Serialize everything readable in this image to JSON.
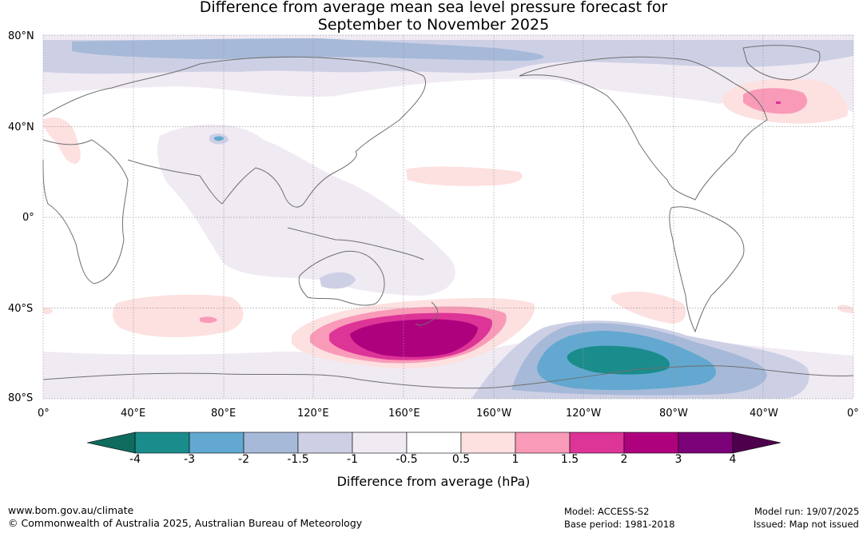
{
  "title": {
    "line1": "Difference from average mean sea level pressure forecast for",
    "line2": "September to November 2025"
  },
  "axes": {
    "lat_labels": [
      "80°N",
      "40°N",
      "0°",
      "40°S",
      "80°S"
    ],
    "lon_labels": [
      "0°",
      "40°E",
      "80°E",
      "120°E",
      "160°E",
      "160°W",
      "120°W",
      "80°W",
      "40°W",
      "0°"
    ]
  },
  "colorbar": {
    "ticks": [
      "-4",
      "-3",
      "-2",
      "-1.5",
      "-1",
      "-0.5",
      "0.5",
      "1",
      "1.5",
      "2",
      "3",
      "4"
    ],
    "colors": [
      "#1b8c8c",
      "#62a8d0",
      "#a6b9d8",
      "#cdd0e5",
      "#f0eaf3",
      "#ffffff",
      "#fde0e0",
      "#f99ab8",
      "#dd3497",
      "#ae017e",
      "#7a0177"
    ],
    "low_extend_color": "#0f6b5e",
    "high_extend_color": "#4d004b",
    "label": "Difference from average (hPa)"
  },
  "footer": {
    "website": "www.bom.gov.au/climate",
    "copyright": "© Commonwealth of Australia 2025, Australian Bureau of Meteorology",
    "model": "Model: ACCESS-S2",
    "base_period": "Base period: 1981-2018",
    "model_run": "Model run: 19/07/2025",
    "issued": "Issued: Map not issued"
  },
  "map_colors": {
    "ocean": "#ffffff",
    "coast": "#6f6f6f",
    "grid": "#9a9a9a"
  }
}
